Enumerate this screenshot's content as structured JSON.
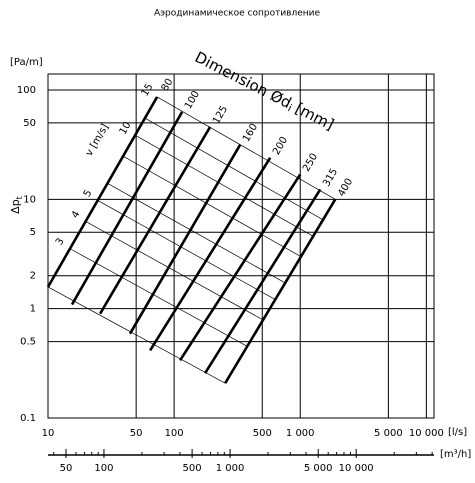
{
  "chart_data": {
    "type": "line",
    "title": "Аэродинамическое сопротивление",
    "y_label": "[Pa/m]",
    "y_symbol": "Δp",
    "y_symbol_subscript": "t",
    "x_label": "[l/s]",
    "x2_label": "[m³/h]",
    "diameter_title": "Dimension Ød",
    "diameter_title_subscript": "i",
    "diameter_title_unit": "[mm]",
    "velocity_title": "v [m/s]",
    "xscale": "log",
    "yscale": "log",
    "grid": true,
    "color": "#000000",
    "xlim": [
      10,
      11500
    ],
    "ylim": [
      0.1,
      140
    ],
    "xticks": [
      10,
      50,
      100,
      500,
      {
        "value": 1000,
        "label": "1 000"
      },
      {
        "value": 5000,
        "label": "5 000"
      },
      {
        "value": 10000,
        "label": "10 000"
      }
    ],
    "yticks": [
      0.1,
      0.5,
      1,
      2,
      5,
      10,
      50,
      100
    ],
    "x2lim": [
      36,
      41400
    ],
    "x2ticks": [
      50,
      100,
      500,
      {
        "value": 1000,
        "label": "1 000"
      },
      {
        "value": 5000,
        "label": "5 000"
      },
      {
        "value": 10000,
        "label": "10 000"
      }
    ],
    "x2_minor_ticks": [
      40,
      60,
      70,
      80,
      90,
      200,
      300,
      400,
      600,
      700,
      800,
      900,
      2000,
      3000,
      4000,
      6000,
      7000,
      8000,
      9000,
      20000,
      30000,
      40000
    ],
    "series": [
      {
        "name": "80",
        "x": [
          10,
          73.3
        ],
        "values": [
          1.58,
          86.4
        ]
      },
      {
        "name": "100",
        "x": [
          15.5,
          115.7
        ],
        "values": [
          1.09,
          63
        ]
      },
      {
        "name": "125",
        "x": [
          25.9,
          193
        ],
        "values": [
          0.9,
          46
        ]
      },
      {
        "name": "160",
        "x": [
          44.7,
          334
        ],
        "values": [
          0.59,
          31.6
        ]
      },
      {
        "name": "200",
        "x": [
          64.5,
          578
        ],
        "values": [
          0.415,
          24
        ]
      },
      {
        "name": "250",
        "x": [
          111.5,
          1000
        ],
        "values": [
          0.337,
          16.9
        ]
      },
      {
        "name": "315",
        "x": [
          176,
          1441
        ],
        "values": [
          0.257,
          12.3
        ]
      },
      {
        "name": "400",
        "x": [
          254,
          1896
        ],
        "values": [
          0.208,
          10
        ]
      }
    ],
    "velocity_series": [
      {
        "name": null,
        "x": [
          10,
          254
        ],
        "values": [
          1.58,
          0.208
        ]
      },
      {
        "name": "3",
        "x": [
          14.9,
          380
        ],
        "values": [
          3.54,
          0.453
        ]
      },
      {
        "name": "4",
        "x": [
          19.9,
          507
        ],
        "values": [
          6.27,
          0.789
        ]
      },
      {
        "name": "5",
        "x": [
          24.8,
          634
        ],
        "values": [
          9.77,
          1.21
        ]
      },
      {
        "name": null,
        "x": [
          29.6,
          760
        ],
        "values": [
          14.0,
          1.72
        ]
      },
      {
        "name": null,
        "x": [
          39.4,
          1014
        ],
        "values": [
          24.8,
          2.99
        ]
      },
      {
        "name": "10",
        "x": [
          49.1,
          1268
        ],
        "values": [
          38.6,
          4.59
        ]
      },
      {
        "name": null,
        "x": [
          58.7,
          1517
        ],
        "values": [
          55.3,
          6.5
        ]
      },
      {
        "name": "15",
        "x": [
          73.3,
          1896
        ],
        "values": [
          86.4,
          10
        ]
      }
    ]
  }
}
